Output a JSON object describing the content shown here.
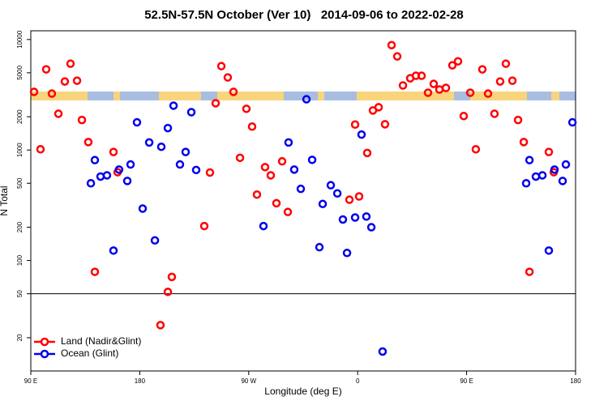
{
  "chart_data": {
    "type": "scatter",
    "title": "52.5N-57.5N October (Ver 10)   2014-09-06 to 2022-02-28",
    "x_label": "Longitude (deg E)",
    "y_label": "N Total",
    "log_y": true,
    "xlim": [
      90,
      540
    ],
    "ylim": [
      10,
      12000
    ],
    "xticks": [
      {
        "value": 90,
        "label": "90 E"
      },
      180,
      {
        "value": 270,
        "label": "90 W"
      },
      {
        "value": 360,
        "label": "0"
      },
      {
        "value": 450,
        "label": "90 E"
      },
      {
        "value": 540,
        "label": "180"
      }
    ],
    "yticks": [
      20,
      50,
      100,
      200,
      500,
      1000,
      2000,
      5000,
      10000
    ],
    "hline": 50,
    "legend": "bottom-left",
    "series": [
      {
        "name": "Land (Nadir&Glint)",
        "color": "#ff0000",
        "x": [
          92.7,
          98,
          102.7,
          107.4,
          112.8,
          118.1,
          122.8,
          128.2,
          132.2,
          137.5,
          142.9,
          158.3,
          161.7,
          197.1,
          203.2,
          206.5,
          233.3,
          238,
          242.7,
          247.4,
          252.7,
          257.4,
          262.8,
          268.1,
          272.8,
          276.8,
          283.5,
          288.2,
          292.9,
          297.6,
          302.3,
          353.2,
          357.9,
          361.2,
          367.9,
          372.6,
          377.3,
          382.6,
          388,
          392.7,
          397.4,
          403.4,
          408.1,
          412.8,
          418.1,
          422.8,
          427.5,
          432.9,
          438.2,
          442.9,
          447.6,
          453,
          457.6,
          463,
          467.7,
          473,
          477.7,
          482.4,
          487.8,
          492.5,
          497.2,
          501.9,
          517.9,
          522
        ],
        "values": [
          3360,
          1016,
          5370,
          3240,
          2130,
          4170,
          6040,
          4240,
          1870,
          1180,
          79,
          960,
          630,
          26,
          52,
          71,
          205,
          625,
          2650,
          5740,
          4540,
          3360,
          850,
          2360,
          1630,
          395,
          700,
          590,
          330,
          790,
          275,
          355,
          1700,
          380,
          940,
          2280,
          2440,
          1710,
          8900,
          7030,
          3840,
          4460,
          4700,
          4700,
          3300,
          3970,
          3530,
          3650,
          5840,
          6350,
          2030,
          3300,
          1016,
          5370,
          3240,
          2130,
          4170,
          6040,
          4240,
          1870,
          1180,
          79,
          960,
          630
        ]
      },
      {
        "name": "Ocean (Glint)",
        "color": "#0000ee",
        "x": [
          139.6,
          142.9,
          147.6,
          152.9,
          158.3,
          162.9,
          169.7,
          172.4,
          177.7,
          182.4,
          187.8,
          192.5,
          197.8,
          203.2,
          207.9,
          213.2,
          217.9,
          222.6,
          226.6,
          282.2,
          302.9,
          307.6,
          313,
          317.7,
          322.4,
          328.4,
          331.1,
          337.8,
          343.2,
          347.8,
          351.2,
          357.9,
          363.2,
          367.2,
          371.3,
          380.6,
          499.2,
          501.9,
          507.2,
          512.6,
          517.9,
          522.6,
          529.3,
          532,
          537.4
        ],
        "values": [
          500,
          810,
          575,
          590,
          123,
          665,
          525,
          740,
          1780,
          295,
          1170,
          152,
          1070,
          1580,
          2520,
          740,
          960,
          2200,
          660,
          205,
          1170,
          665,
          445,
          2880,
          815,
          132,
          325,
          480,
          405,
          235,
          117,
          245,
          1380,
          250,
          200,
          15,
          500,
          810,
          575,
          590,
          123,
          665,
          525,
          740,
          1780
        ]
      }
    ]
  }
}
